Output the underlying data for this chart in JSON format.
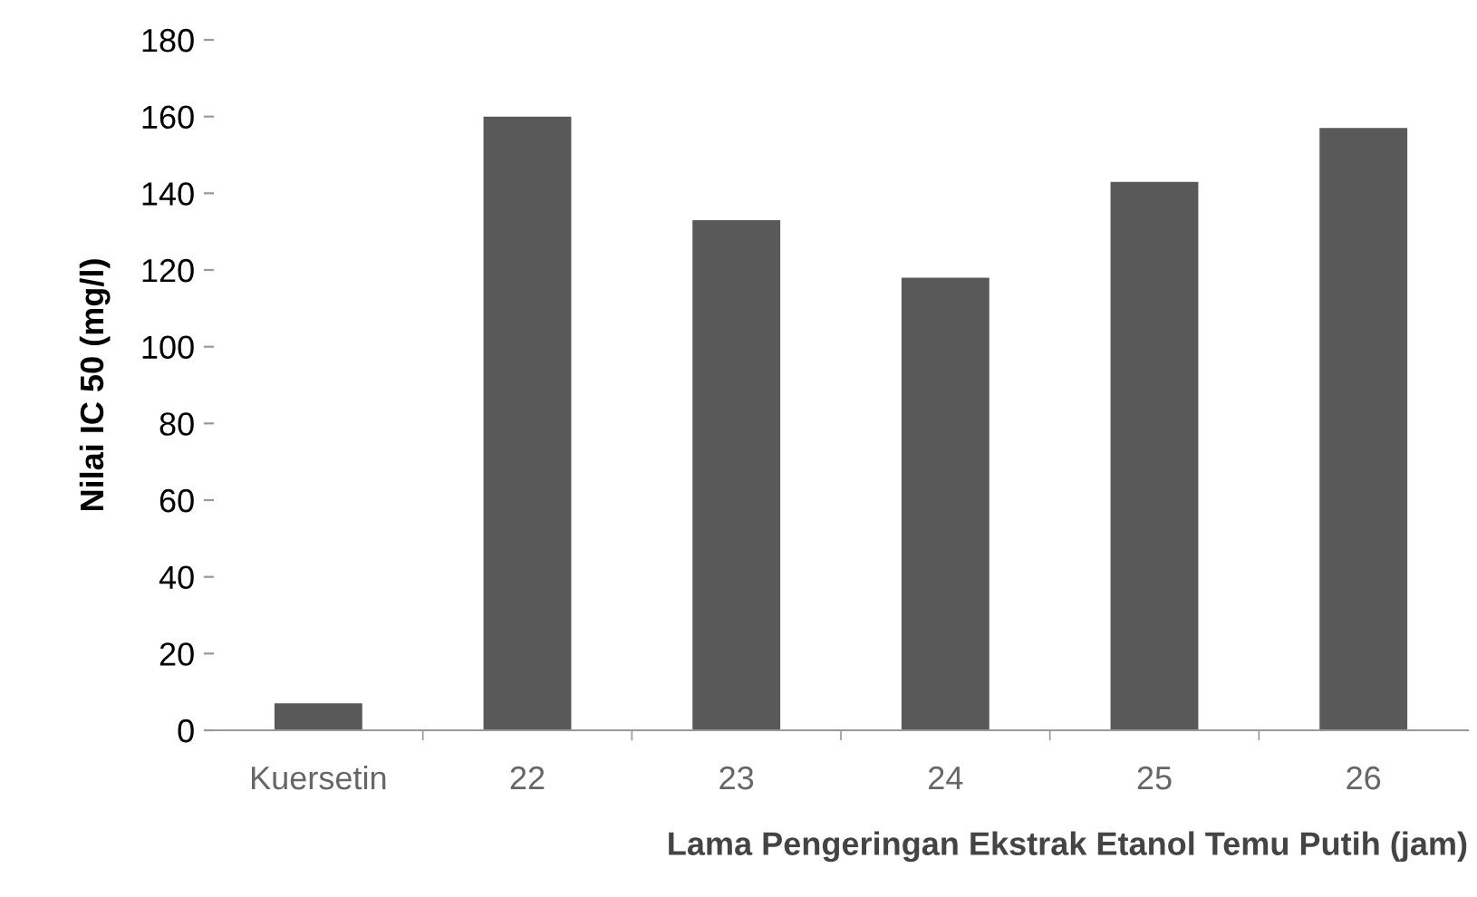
{
  "chart_data": {
    "type": "bar",
    "xlabel": "Lama Pengeringan Ekstrak Etanol Temu Putih (jam)",
    "ylabel": "Nilai IC 50 (mg/l)",
    "categories": [
      "Kuersetin",
      "22",
      "23",
      "24",
      "25",
      "26"
    ],
    "values": [
      7,
      160,
      133,
      118,
      143,
      157
    ],
    "color": "#595959",
    "ylim": [
      0,
      180
    ],
    "yticks": [
      0,
      20,
      40,
      60,
      80,
      100,
      120,
      140,
      160,
      180
    ],
    "grid": false,
    "legend": false
  }
}
